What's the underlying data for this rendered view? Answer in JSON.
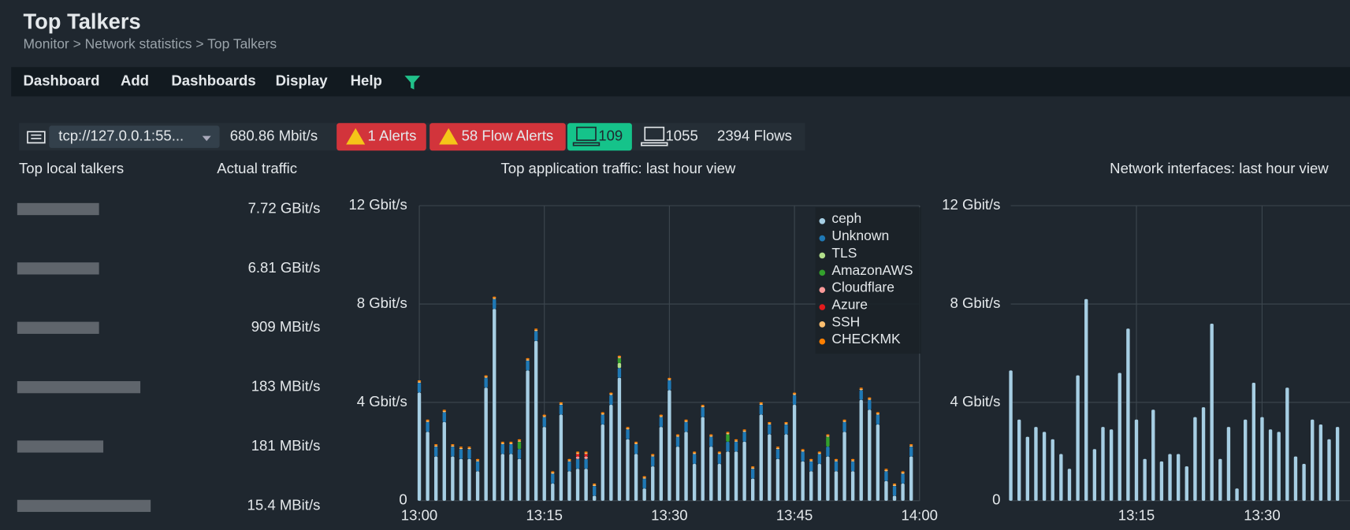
{
  "header": {
    "title": "Top Talkers",
    "breadcrumb": "Monitor > Network statistics > Top Talkers"
  },
  "menu": [
    "Dashboard",
    "Add",
    "Dashboards",
    "Display",
    "Help"
  ],
  "toolbar": {
    "source": "tcp://127.0.0.1:55...",
    "throughput": "680.86 Mbit/s",
    "alerts": "1 Alerts",
    "flow_alerts": "58 Flow Alerts",
    "local_hosts": "109",
    "remote_hosts": "1055",
    "flows": "2394 Flows"
  },
  "talkers": {
    "headers": [
      "Top local talkers",
      "Actual traffic"
    ],
    "values": [
      "7.72 GBit/s",
      "6.81 GBit/s",
      "909 MBit/s",
      "183 MBit/s",
      "181 MBit/s",
      "15.4 MBit/s"
    ]
  },
  "chart_data": [
    {
      "type": "bar",
      "stacked": true,
      "title": "Top application traffic: last hour view",
      "legend": "upper right",
      "grid": true,
      "categories": [
        "13:00",
        null,
        null,
        null,
        null,
        null,
        null,
        null,
        null,
        null,
        null,
        null,
        null,
        null,
        null,
        "13:15",
        null,
        null,
        null,
        null,
        null,
        null,
        null,
        null,
        null,
        null,
        null,
        null,
        null,
        null,
        "13:30",
        null,
        null,
        null,
        null,
        null,
        null,
        null,
        null,
        null,
        null,
        null,
        null,
        null,
        null,
        "13:45",
        null,
        null,
        null,
        null,
        null,
        null,
        null,
        null,
        null,
        null,
        null,
        null,
        null,
        null,
        "14:00"
      ],
      "ylim": [
        0,
        12
      ],
      "yticks": [
        0,
        {
          "value": 4,
          "label": "4 Gbit/s"
        },
        {
          "value": 8,
          "label": "8 Gbit/s"
        },
        {
          "value": 12,
          "label": "12 Gbit/s"
        }
      ],
      "series": [
        {
          "name": "ceph",
          "color": "#a6cee3",
          "values": [
            4.4,
            2.8,
            1.8,
            3.2,
            1.8,
            1.7,
            1.7,
            1.2,
            4.6,
            7.8,
            1.9,
            1.9,
            1.7,
            5.3,
            6.5,
            3.0,
            0.7,
            3.5,
            1.2,
            1.3,
            1.3,
            0.2,
            3.1,
            3.9,
            5.0,
            2.5,
            1.9,
            0.5,
            1.4,
            3.0,
            4.5,
            2.2,
            2.8,
            1.5,
            3.4,
            2.2,
            1.5,
            2.0,
            2.0,
            2.4,
            0.9,
            3.5,
            2.7,
            1.7,
            2.7,
            3.9,
            1.6,
            1.2,
            1.5,
            1.8,
            1.2,
            2.8,
            1.2,
            4.1,
            3.7,
            3.1,
            0.8,
            0.2,
            0.7,
            1.8,
            null
          ]
        },
        {
          "name": "Unknown",
          "color": "#1f78b4",
          "values": [
            0.4,
            0.4,
            0.4,
            0.4,
            0.4,
            0.4,
            0.4,
            0.4,
            0.4,
            0.4,
            0.4,
            0.4,
            0.4,
            0.4,
            0.4,
            0.4,
            0.4,
            0.4,
            0.4,
            0.4,
            0.4,
            0.4,
            0.4,
            0.4,
            0.4,
            0.4,
            0.4,
            0.4,
            0.4,
            0.4,
            0.4,
            0.4,
            0.4,
            0.4,
            0.4,
            0.4,
            0.4,
            0.4,
            0.4,
            0.4,
            0.4,
            0.4,
            0.4,
            0.4,
            0.4,
            0.4,
            0.4,
            0.4,
            0.4,
            0.4,
            0.4,
            0.4,
            0.4,
            0.4,
            0.4,
            0.4,
            0.4,
            0.4,
            0.4,
            0.4,
            null
          ]
        },
        {
          "name": "TLS",
          "color": "#b2df8a",
          "values": [
            0,
            0,
            0,
            0,
            0,
            0,
            0,
            0,
            0,
            0,
            0,
            0,
            0,
            0,
            0,
            0,
            0,
            0,
            0,
            0,
            0,
            0,
            0,
            0,
            0.2,
            0,
            0,
            0,
            0,
            0,
            0,
            0,
            0,
            0,
            0,
            0,
            0,
            0,
            0,
            0,
            0,
            0,
            0,
            0,
            0,
            0,
            0,
            0,
            0,
            0,
            0,
            0,
            0,
            0,
            0,
            0,
            0,
            0,
            0,
            0,
            null
          ]
        },
        {
          "name": "AmazonAWS",
          "color": "#33a02c",
          "values": [
            0,
            0,
            0,
            0,
            0,
            0,
            0,
            0,
            0,
            0,
            0,
            0,
            0.3,
            0,
            0,
            0,
            0,
            0,
            0,
            0,
            0,
            0,
            0,
            0,
            0.2,
            0,
            0,
            0,
            0,
            0,
            0,
            0,
            0,
            0,
            0,
            0,
            0,
            0.3,
            0,
            0,
            0,
            0,
            0,
            0,
            0,
            0,
            0,
            0,
            0,
            0.4,
            0,
            0,
            0,
            0,
            0,
            0,
            0,
            0,
            0,
            0,
            null
          ]
        },
        {
          "name": "Cloudflare",
          "color": "#fb9a99",
          "values": [
            0,
            0,
            0,
            0,
            0,
            0,
            0,
            0,
            0,
            0,
            0,
            0,
            0,
            0,
            0,
            0,
            0,
            0,
            0,
            0.1,
            0.1,
            0,
            0,
            0,
            0,
            0,
            0,
            0,
            0,
            0,
            0,
            0,
            0,
            0,
            0,
            0,
            0,
            0,
            0,
            0,
            0,
            0,
            0,
            0,
            0,
            0,
            0,
            0,
            0,
            0,
            0,
            0,
            0,
            0,
            0,
            0,
            0,
            0,
            0,
            0,
            null
          ]
        },
        {
          "name": "Azure",
          "color": "#e31a1c",
          "values": [
            0,
            0,
            0,
            0,
            0,
            0,
            0,
            0,
            0,
            0,
            0,
            0,
            0,
            0,
            0,
            0,
            0,
            0,
            0,
            0.1,
            0.1,
            0,
            0,
            0,
            0,
            0,
            0,
            0,
            0,
            0,
            0,
            0,
            0,
            0,
            0,
            0,
            0,
            0,
            0,
            0,
            0,
            0,
            0,
            0,
            0,
            0,
            0,
            0,
            0,
            0,
            0,
            0,
            0,
            0,
            0,
            0,
            0,
            0,
            0,
            0,
            null
          ]
        },
        {
          "name": "SSH",
          "color": "#fdbf6f",
          "values": [
            0.05,
            0.05,
            0.05,
            0.05,
            0.05,
            0.05,
            0.05,
            0.05,
            0.05,
            0.05,
            0.05,
            0.05,
            0.05,
            0.05,
            0.05,
            0.05,
            0.05,
            0.05,
            0.05,
            0.05,
            0.05,
            0.05,
            0.05,
            0.05,
            0.05,
            0.05,
            0.05,
            0.05,
            0.05,
            0.05,
            0.05,
            0.05,
            0.05,
            0.05,
            0.05,
            0.05,
            0.05,
            0.05,
            0.05,
            0.05,
            0.05,
            0.05,
            0.05,
            0.05,
            0.05,
            0.05,
            0.05,
            0.05,
            0.05,
            0.05,
            0.05,
            0.05,
            0.05,
            0.05,
            0.05,
            0.05,
            0.05,
            0.05,
            0.05,
            0.05,
            null
          ]
        },
        {
          "name": "CHECKMK",
          "color": "#ff7f00",
          "values": [
            0.05,
            0.05,
            0.05,
            0.05,
            0.05,
            0.05,
            0.05,
            0.05,
            0.05,
            0.05,
            0.05,
            0.05,
            0.05,
            0.05,
            0.05,
            0.05,
            0.05,
            0.05,
            0.05,
            0.05,
            0.05,
            0.05,
            0.05,
            0.05,
            0.05,
            0.05,
            0.05,
            0.05,
            0.05,
            0.05,
            0.05,
            0.05,
            0.05,
            0.05,
            0.05,
            0.05,
            0.05,
            0.05,
            0.05,
            0.05,
            0.05,
            0.05,
            0.05,
            0.05,
            0.05,
            0.05,
            0.05,
            0.05,
            0.05,
            0.05,
            0.05,
            0.05,
            0.05,
            0.05,
            0.05,
            0.05,
            0.05,
            0.05,
            0.05,
            0.05,
            null
          ]
        }
      ]
    },
    {
      "type": "bar",
      "title": "Network interfaces: last hour view",
      "grid": true,
      "color": "#a6cee3",
      "categories": [
        null,
        null,
        null,
        null,
        null,
        null,
        null,
        null,
        null,
        null,
        null,
        null,
        null,
        null,
        null,
        "13:15",
        null,
        null,
        null,
        null,
        null,
        null,
        null,
        null,
        null,
        null,
        null,
        null,
        null,
        null,
        "13:30",
        null,
        null,
        null,
        null,
        null,
        null,
        null,
        null,
        null
      ],
      "values": [
        5.3,
        3.3,
        2.6,
        3.0,
        2.8,
        2.5,
        1.9,
        1.3,
        5.1,
        8.2,
        2.1,
        3.0,
        2.9,
        5.2,
        7.0,
        3.3,
        1.7,
        3.7,
        1.6,
        1.9,
        1.9,
        1.4,
        3.4,
        3.8,
        7.2,
        1.7,
        3.0,
        0.5,
        3.3,
        4.8,
        3.4,
        2.9,
        2.8,
        4.6,
        1.8,
        1.5,
        3.3,
        3.1,
        2.5,
        3.0
      ],
      "ylim": [
        0,
        12
      ],
      "yticks": [
        0,
        {
          "value": 4,
          "label": "4 Gbit/s"
        },
        {
          "value": 8,
          "label": "8 Gbit/s"
        },
        {
          "value": 12,
          "label": "12 Gbit/s"
        }
      ]
    }
  ]
}
